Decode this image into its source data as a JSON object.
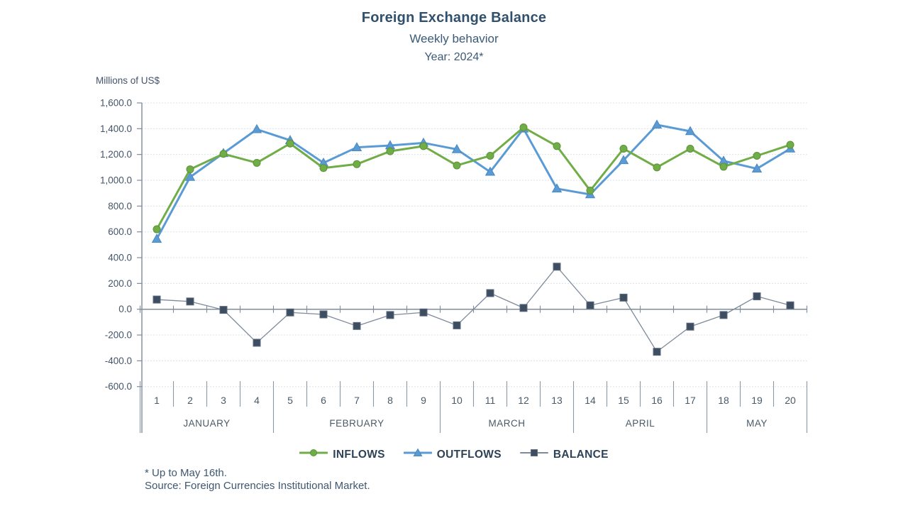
{
  "header": {
    "title": "Foreign Exchange Balance",
    "subtitle1": "Weekly behavior",
    "subtitle2": "Year: 2024*"
  },
  "footnote": {
    "line1": "* Up to May 16th.",
    "line2": "Source: Foreign Currencies Institutional Market."
  },
  "chart_data": {
    "type": "line",
    "ylabel": "Millions of US$",
    "ylim": [
      -600,
      1600
    ],
    "ytick_step": 200,
    "grid": true,
    "legend_position": "bottom",
    "y_ticks": [
      {
        "v": 1600,
        "label": "1,600.0"
      },
      {
        "v": 1400,
        "label": "1,400.0"
      },
      {
        "v": 1200,
        "label": "1,200.0"
      },
      {
        "v": 1000,
        "label": "1,000.0"
      },
      {
        "v": 800,
        "label": "800.0"
      },
      {
        "v": 600,
        "label": "600.0"
      },
      {
        "v": 400,
        "label": "400.0"
      },
      {
        "v": 200,
        "label": "200.0"
      },
      {
        "v": 0,
        "label": "0.0"
      },
      {
        "v": -200,
        "label": "-200.0"
      },
      {
        "v": -400,
        "label": "-400.0"
      },
      {
        "v": -600,
        "label": "-600.0"
      }
    ],
    "x_labels": [
      "1",
      "2",
      "3",
      "4",
      "5",
      "6",
      "7",
      "8",
      "9",
      "10",
      "11",
      "12",
      "13",
      "14",
      "15",
      "16",
      "17",
      "18",
      "19",
      "20"
    ],
    "month_groups": [
      {
        "label": "JANUARY",
        "from": 1,
        "to": 4
      },
      {
        "label": "FEBRUARY",
        "from": 5,
        "to": 9
      },
      {
        "label": "MARCH",
        "from": 10,
        "to": 13
      },
      {
        "label": "APRIL",
        "from": 14,
        "to": 17
      },
      {
        "label": "MAY",
        "from": 18,
        "to": 20
      }
    ],
    "series": [
      {
        "name": "INFLOWS",
        "marker": "circle",
        "color": "#70AD47",
        "marker_stroke": "#5C9139",
        "values": [
          620,
          1085,
          1205,
          1135,
          1285,
          1095,
          1125,
          1225,
          1265,
          1115,
          1190,
          1410,
          1265,
          920,
          1245,
          1100,
          1245,
          1105,
          1190,
          1275
        ]
      },
      {
        "name": "OUTFLOWS",
        "marker": "triangle",
        "color": "#5B9BD5",
        "marker_stroke": "#4A88C0",
        "values": [
          545,
          1025,
          1210,
          1395,
          1310,
          1135,
          1255,
          1270,
          1290,
          1240,
          1065,
          1400,
          935,
          890,
          1155,
          1430,
          1380,
          1150,
          1090,
          1245
        ]
      },
      {
        "name": "BALANCE",
        "marker": "square",
        "color": "#3F4D61",
        "marker_stroke": "#5A6B80",
        "line_color": "#7D8A9B",
        "values": [
          75,
          60,
          -5,
          -260,
          -25,
          -40,
          -130,
          -45,
          -25,
          -125,
          125,
          10,
          330,
          30,
          90,
          -330,
          -135,
          -45,
          100,
          30
        ]
      }
    ],
    "colors": {
      "grid": "#DCE3EA",
      "axis": "#7E8C9C",
      "separators": "#8B98A7",
      "tick_text": "#44546A",
      "month_text": "#4A5A68"
    }
  }
}
